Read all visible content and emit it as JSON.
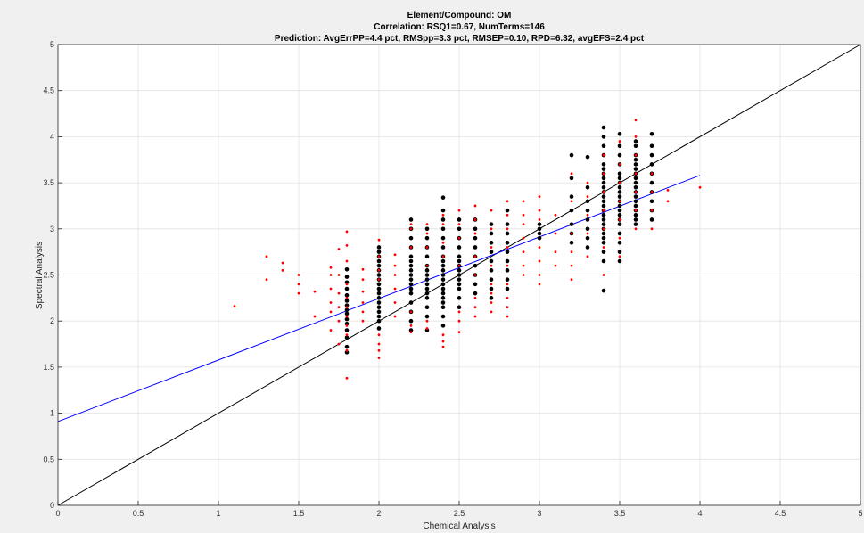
{
  "chart_data": {
    "type": "scatter",
    "title_lines": [
      "Element/Compound: OM",
      "Correlation: RSQ1=0.67, NumTerms=146",
      "Prediction: AvgErrPP=4.4 pct, RMSpp=3.3 pct, RMSEP=0.10, RPD=6.32, avgEFS=2.4 pct"
    ],
    "xlabel": "Chemical Analysis",
    "ylabel": "Spectral Analysis",
    "xlim": [
      0,
      5
    ],
    "ylim": [
      0,
      5
    ],
    "xticks": [
      0,
      0.5,
      1,
      1.5,
      2,
      2.5,
      3,
      3.5,
      4,
      4.5,
      5
    ],
    "yticks": [
      0,
      0.5,
      1,
      1.5,
      2,
      2.5,
      3,
      3.5,
      4,
      4.5,
      5
    ],
    "xtick_labels": [
      "0",
      "0.5",
      "1",
      "1.5",
      "2",
      "2.5",
      "3",
      "3.5",
      "4",
      "4.5",
      "5"
    ],
    "ytick_labels": [
      "0",
      "0.5",
      "1",
      "1.5",
      "2",
      "2.5",
      "3",
      "3.5",
      "4",
      "4.5",
      "5"
    ],
    "grid": true,
    "lines": [
      {
        "color": "#000000",
        "x": [
          0,
          5
        ],
        "y": [
          0,
          5
        ]
      },
      {
        "color": "#0000ff",
        "x": [
          0,
          4
        ],
        "y": [
          0.91,
          3.58
        ]
      }
    ],
    "series": [
      {
        "color": "#000000",
        "columns": [
          {
            "x": 1.8,
            "y": [
              1.66,
              1.72,
              1.82,
              1.9,
              1.97,
              2.02,
              2.08,
              2.12,
              2.17,
              2.22,
              2.28,
              2.35,
              2.42,
              2.48,
              2.56
            ]
          },
          {
            "x": 2.0,
            "y": [
              1.92,
              2.0,
              2.05,
              2.1,
              2.15,
              2.2,
              2.25,
              2.3,
              2.35,
              2.4,
              2.45,
              2.5,
              2.55,
              2.6,
              2.65,
              2.7,
              2.75,
              2.8
            ]
          },
          {
            "x": 2.2,
            "y": [
              1.9,
              2.0,
              2.1,
              2.2,
              2.3,
              2.35,
              2.4,
              2.45,
              2.5,
              2.55,
              2.6,
              2.65,
              2.7,
              2.8,
              2.9,
              3.0,
              3.1
            ]
          },
          {
            "x": 2.3,
            "y": [
              1.9,
              2.05,
              2.15,
              2.25,
              2.3,
              2.35,
              2.4,
              2.45,
              2.5,
              2.55,
              2.6,
              2.7,
              2.8,
              2.9,
              3.0
            ]
          },
          {
            "x": 2.4,
            "y": [
              1.95,
              2.05,
              2.15,
              2.2,
              2.25,
              2.3,
              2.35,
              2.4,
              2.45,
              2.5,
              2.55,
              2.6,
              2.65,
              2.7,
              2.8,
              2.9,
              3.0,
              3.1,
              3.2,
              3.34
            ]
          },
          {
            "x": 2.5,
            "y": [
              2.15,
              2.25,
              2.35,
              2.4,
              2.45,
              2.5,
              2.55,
              2.6,
              2.65,
              2.7,
              2.8,
              2.9,
              3.0,
              3.1
            ]
          },
          {
            "x": 2.6,
            "y": [
              2.3,
              2.4,
              2.5,
              2.6,
              2.7,
              2.8,
              2.9,
              3.0,
              3.1
            ]
          },
          {
            "x": 2.7,
            "y": [
              2.25,
              2.35,
              2.45,
              2.55,
              2.65,
              2.75,
              2.85,
              2.95,
              3.05
            ]
          },
          {
            "x": 2.8,
            "y": [
              2.35,
              2.45,
              2.55,
              2.65,
              2.75,
              2.85,
              2.95,
              3.05,
              3.2
            ]
          },
          {
            "x": 3.0,
            "y": [
              2.9,
              2.95,
              3.0,
              3.05
            ]
          },
          {
            "x": 3.2,
            "y": [
              2.85,
              2.95,
              3.05,
              3.2,
              3.35,
              3.55,
              3.8
            ]
          },
          {
            "x": 3.3,
            "y": [
              2.8,
              2.9,
              3.0,
              3.1,
              3.2,
              3.3,
              3.45,
              3.78
            ]
          },
          {
            "x": 3.4,
            "y": [
              2.33,
              2.65,
              2.75,
              2.85,
              2.9,
              2.95,
              3.0,
              3.05,
              3.1,
              3.15,
              3.2,
              3.25,
              3.3,
              3.35,
              3.4,
              3.45,
              3.5,
              3.55,
              3.6,
              3.65,
              3.7,
              3.8,
              3.9,
              4.0,
              4.1
            ]
          },
          {
            "x": 3.5,
            "y": [
              2.65,
              2.75,
              2.85,
              2.95,
              3.05,
              3.1,
              3.15,
              3.2,
              3.25,
              3.3,
              3.35,
              3.4,
              3.45,
              3.5,
              3.55,
              3.6,
              3.7,
              3.8,
              3.9,
              4.03
            ]
          },
          {
            "x": 3.6,
            "y": [
              3.05,
              3.1,
              3.15,
              3.2,
              3.25,
              3.3,
              3.35,
              3.4,
              3.45,
              3.5,
              3.55,
              3.6,
              3.65,
              3.7,
              3.75,
              3.8,
              3.9,
              3.95
            ]
          },
          {
            "x": 3.7,
            "y": [
              3.1,
              3.2,
              3.3,
              3.4,
              3.5,
              3.6,
              3.7,
              3.8,
              3.9,
              4.03
            ]
          }
        ]
      },
      {
        "color": "#ff0000",
        "columns": [
          {
            "x": 1.1,
            "y": [
              2.16
            ]
          },
          {
            "x": 1.3,
            "y": [
              2.45,
              2.7
            ]
          },
          {
            "x": 1.4,
            "y": [
              2.55,
              2.63
            ]
          },
          {
            "x": 1.5,
            "y": [
              2.3,
              2.4,
              2.5
            ]
          },
          {
            "x": 1.6,
            "y": [
              2.05,
              2.32
            ]
          },
          {
            "x": 1.7,
            "y": [
              1.9,
              2.1,
              2.2,
              2.35,
              2.5,
              2.58
            ]
          },
          {
            "x": 1.75,
            "y": [
              1.75,
              2.0,
              2.15,
              2.3,
              2.5,
              2.78
            ]
          },
          {
            "x": 1.8,
            "y": [
              1.38,
              1.68,
              1.85,
              1.95,
              2.05,
              2.15,
              2.25,
              2.4,
              2.65,
              2.82,
              2.97
            ]
          },
          {
            "x": 1.9,
            "y": [
              2.0,
              2.1,
              2.2,
              2.32,
              2.45,
              2.56
            ]
          },
          {
            "x": 2.0,
            "y": [
              1.6,
              1.68,
              1.75,
              1.85,
              2.45,
              2.55,
              2.7,
              2.88
            ]
          },
          {
            "x": 2.1,
            "y": [
              2.05,
              2.2,
              2.35,
              2.5,
              2.6,
              2.72
            ]
          },
          {
            "x": 2.2,
            "y": [
              1.88,
              1.95,
              2.1,
              2.8,
              3.0,
              3.05
            ]
          },
          {
            "x": 2.3,
            "y": [
              1.92,
              2.0,
              2.6,
              2.8,
              2.95,
              3.05
            ]
          },
          {
            "x": 2.4,
            "y": [
              1.72,
              1.78,
              1.85,
              2.7,
              2.85,
              3.05,
              3.15
            ]
          },
          {
            "x": 2.5,
            "y": [
              1.88,
              2.0,
              2.1,
              2.6,
              2.9,
              3.05,
              3.2
            ]
          },
          {
            "x": 2.6,
            "y": [
              2.05,
              2.15,
              2.25,
              2.5,
              2.7,
              2.95,
              3.1,
              3.25
            ]
          },
          {
            "x": 2.7,
            "y": [
              2.1,
              2.2,
              2.3,
              2.4,
              2.6,
              2.8,
              3.0,
              3.2
            ]
          },
          {
            "x": 2.8,
            "y": [
              2.05,
              2.15,
              2.25,
              2.4,
              2.6,
              2.8,
              3.0,
              3.15,
              3.3
            ]
          },
          {
            "x": 2.9,
            "y": [
              2.5,
              2.6,
              2.75,
              2.9,
              3.05,
              3.15,
              3.3
            ]
          },
          {
            "x": 3.0,
            "y": [
              2.4,
              2.5,
              2.65,
              2.8,
              3.1,
              3.2,
              3.35
            ]
          },
          {
            "x": 3.1,
            "y": [
              2.6,
              2.75,
              2.95,
              3.15
            ]
          },
          {
            "x": 3.2,
            "y": [
              2.45,
              2.6,
              2.75,
              2.95,
              3.3,
              3.6
            ]
          },
          {
            "x": 3.3,
            "y": [
              2.7,
              2.95,
              3.15,
              3.35,
              3.5
            ]
          },
          {
            "x": 3.4,
            "y": [
              2.5,
              2.8,
              3.0,
              3.2,
              3.4,
              3.6,
              3.8
            ]
          },
          {
            "x": 3.5,
            "y": [
              2.7,
              2.9,
              3.1,
              3.3,
              3.5,
              3.7,
              3.95
            ]
          },
          {
            "x": 3.6,
            "y": [
              3.0,
              3.2,
              3.4,
              3.6,
              3.8,
              4.0,
              4.18
            ]
          },
          {
            "x": 3.7,
            "y": [
              3.0,
              3.2,
              3.4,
              3.6
            ]
          },
          {
            "x": 3.8,
            "y": [
              3.3,
              3.42
            ]
          },
          {
            "x": 4.0,
            "y": [
              3.45
            ]
          }
        ]
      }
    ]
  }
}
